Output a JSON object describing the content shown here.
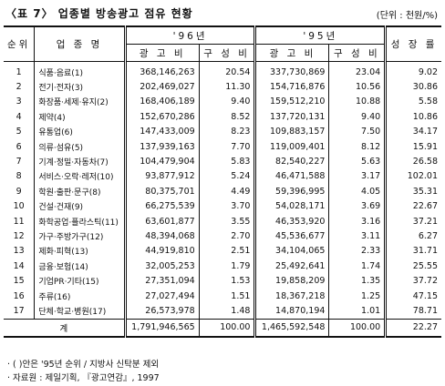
{
  "header": {
    "title": "〈표 7〉 업종별 방송광고 점유 현황",
    "unit": "(단위 : 천원/%)"
  },
  "table": {
    "columns": {
      "rank": "순위",
      "industry": "업 종 명",
      "year1": "'96년",
      "year2": "'95년",
      "ad": "광 고 비",
      "share": "구 성 비",
      "ad2": "광 고 비",
      "share2": "구 성 비",
      "growth": "성 장 률"
    },
    "rows": [
      [
        "1",
        "식품·음료(1)",
        "368,146,263",
        "20.54",
        "337,730,869",
        "23.04",
        "9.02"
      ],
      [
        "2",
        "전기·전자(3)",
        "202,469,027",
        "11.30",
        "154,716,876",
        "10.56",
        "30.86"
      ],
      [
        "3",
        "화장품·세제·유지(2)",
        "168,406,189",
        "9.40",
        "159,512,210",
        "10.88",
        "5.58"
      ],
      [
        "4",
        "제약(4)",
        "152,670,286",
        "8.52",
        "137,720,131",
        "9.40",
        "10.86"
      ],
      [
        "5",
        "유통업(6)",
        "147,433,009",
        "8.23",
        "109,883,157",
        "7.50",
        "34.17"
      ],
      [
        "6",
        "의류·섬유(5)",
        "137,939,163",
        "7.70",
        "119,009,401",
        "8.12",
        "15.91"
      ],
      [
        "7",
        "기계·정밀·자동차(7)",
        "104,479,904",
        "5.83",
        "82,540,227",
        "5.63",
        "26.58"
      ],
      [
        "8",
        "서비스·오락·레저(10)",
        "93,877,912",
        "5.24",
        "46,471,588",
        "3.17",
        "102.01"
      ],
      [
        "9",
        "학원·출판·문구(8)",
        "80,375,701",
        "4.49",
        "59,396,995",
        "4.05",
        "35.31"
      ],
      [
        "10",
        "건설·건재(9)",
        "66,275,539",
        "3.70",
        "54,028,171",
        "3.69",
        "22.67"
      ],
      [
        "11",
        "화학공업·플라스틱(11)",
        "63,601,877",
        "3.55",
        "46,353,920",
        "3.16",
        "37.21"
      ],
      [
        "12",
        "가구·주방가구(12)",
        "48,394,068",
        "2.70",
        "45,536,677",
        "3.11",
        "6.27"
      ],
      [
        "13",
        "제화·피혁(13)",
        "44,919,810",
        "2.51",
        "34,104,065",
        "2.33",
        "31.71"
      ],
      [
        "14",
        "금융·보험(14)",
        "32,005,253",
        "1.79",
        "25,492,641",
        "1.74",
        "25.55"
      ],
      [
        "15",
        "기업PR·기타(15)",
        "27,351,094",
        "1.53",
        "19,858,209",
        "1.35",
        "37.72"
      ],
      [
        "16",
        "주류(16)",
        "27,027,494",
        "1.51",
        "18,367,218",
        "1.25",
        "47.15"
      ],
      [
        "17",
        "단체·학교·병원(17)",
        "26,573,978",
        "1.48",
        "14,870,194",
        "1.01",
        "78.71"
      ]
    ],
    "total": [
      "계",
      "1,791,946,565",
      "100.00",
      "1,465,592,548",
      "100.00",
      "22.27"
    ]
  },
  "notes": [
    "· ( )안은 '95년 순위 / 지방사 신탁분 제외",
    "· 자료원 : 제일기획, 『광고연감』, 1997"
  ]
}
